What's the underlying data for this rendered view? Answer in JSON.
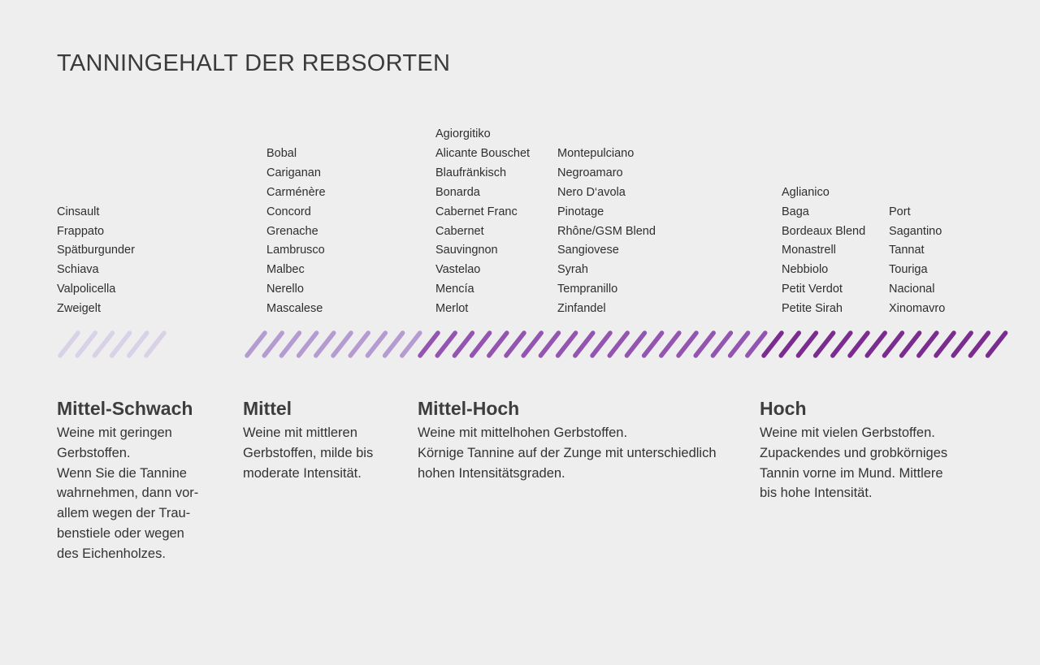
{
  "title": "TANNINGEHALT DER REBSORTEN",
  "levels": [
    {
      "id": "mittel-schwach",
      "name": "Mittel-Schwach",
      "color": "#d9d1e6",
      "hatch_count": 6,
      "grape_columns": [
        [
          "Cinsault",
          "Frappato",
          "Spätburgunder",
          "Schiava",
          "Valpolicella",
          "Zweigelt"
        ]
      ],
      "description_lines": [
        "Weine mit geringen",
        "Gerbstoffen.",
        "Wenn Sie die Tannine",
        "wahrnehmen, dann vor-",
        "allem wegen der Trau-",
        "benstiele oder wegen",
        "des Eichenholzes."
      ]
    },
    {
      "id": "mittel",
      "name": "Mittel",
      "color": "#b49bd0",
      "hatch_count": 10,
      "grape_columns": [
        [
          "Bobal",
          "Cariganan",
          "Carménère",
          "Concord",
          "Grenache",
          "Lambrusco",
          "Malbec",
          "Nerello",
          "Mascalese"
        ]
      ],
      "description_lines": [
        "Weine mit mittleren",
        "Gerbstoffen, milde bis",
        "moderate Intensität."
      ]
    },
    {
      "id": "mittel-hoch",
      "name": "Mittel-Hoch",
      "color": "#9355b0",
      "hatch_count": 20,
      "grape_columns": [
        [
          "Agiorgitiko",
          "Alicante Bouschet",
          "Blaufränkisch",
          "Bonarda",
          "Cabernet Franc",
          "Cabernet",
          "Sauvingnon",
          "Vastelao",
          "Mencía",
          "Merlot"
        ],
        [
          "Montepulciano",
          "Negroamaro",
          "Nero D‘avola",
          "Pinotage",
          "Rhône/GSM Blend",
          "Sangiovese",
          "Syrah",
          "Tempranillo",
          "Zinfandel"
        ]
      ],
      "description_lines": [
        "Weine mit mittelhohen Gerbstoffen.",
        "Körnige Tannine auf der Zunge mit unterschiedlich",
        "hohen Intensitätsgraden."
      ]
    },
    {
      "id": "hoch",
      "name": "Hoch",
      "color": "#7a2c8f",
      "hatch_count": 14,
      "grape_columns": [
        [
          "Aglianico",
          "Baga",
          "Bordeaux Blend",
          "Monastrell",
          "Nebbiolo",
          "Petit Verdot",
          "Petite Sirah"
        ],
        [
          "Port",
          "Sagantino",
          "Tannat",
          "Touriga",
          "Nacional",
          "Xinomavro"
        ]
      ],
      "description_lines": [
        "Weine mit vielen Gerbstoffen.",
        "Zupackendes und grobkörniges",
        "Tannin vorne im Mund. Mittlere",
        "bis hohe Intensität."
      ]
    }
  ]
}
